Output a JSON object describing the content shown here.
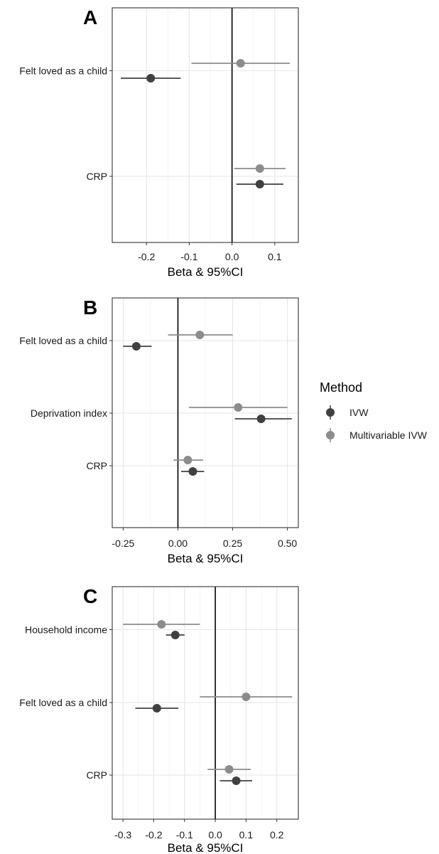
{
  "chart_data": [
    {
      "type": "forest",
      "panel": "A",
      "xlabel": "Beta & 95%CI",
      "xlim": [
        -0.28,
        0.155
      ],
      "xticks": [
        -0.2,
        -0.1,
        0.0,
        0.1
      ],
      "xtick_labels": [
        "-0.2",
        "-0.1",
        "0.0",
        "0.1"
      ],
      "categories": [
        "Felt loved as a child",
        "CRP"
      ],
      "series": [
        {
          "name": "IVW",
          "color": "#404040",
          "points": [
            {
              "category": "Felt loved as a child",
              "beta": -0.19,
              "lo": -0.26,
              "hi": -0.12
            },
            {
              "category": "CRP",
              "beta": 0.065,
              "lo": 0.01,
              "hi": 0.12
            }
          ]
        },
        {
          "name": "Multivariable IVW",
          "color": "#8c8c8c",
          "points": [
            {
              "category": "Felt loved as a child",
              "beta": 0.02,
              "lo": -0.095,
              "hi": 0.135
            },
            {
              "category": "CRP",
              "beta": 0.065,
              "lo": 0.005,
              "hi": 0.125
            }
          ]
        }
      ]
    },
    {
      "type": "forest",
      "panel": "B",
      "xlabel": "Beta & 95%CI",
      "xlim": [
        -0.3,
        0.55
      ],
      "xticks": [
        -0.25,
        0.0,
        0.25,
        0.5
      ],
      "xtick_labels": [
        "-0.25",
        "0.00",
        "0.25",
        "0.50"
      ],
      "categories": [
        "Felt loved as a child",
        "Deprivation index",
        "CRP"
      ],
      "series": [
        {
          "name": "IVW",
          "color": "#404040",
          "points": [
            {
              "category": "Felt loved as a child",
              "beta": -0.19,
              "lo": -0.25,
              "hi": -0.12
            },
            {
              "category": "Deprivation index",
              "beta": 0.38,
              "lo": 0.26,
              "hi": 0.52
            },
            {
              "category": "CRP",
              "beta": 0.068,
              "lo": 0.015,
              "hi": 0.12
            }
          ]
        },
        {
          "name": "Multivariable IVW",
          "color": "#8c8c8c",
          "points": [
            {
              "category": "Felt loved as a child",
              "beta": 0.1,
              "lo": -0.045,
              "hi": 0.25
            },
            {
              "category": "Deprivation index",
              "beta": 0.275,
              "lo": 0.05,
              "hi": 0.5
            },
            {
              "category": "CRP",
              "beta": 0.045,
              "lo": -0.02,
              "hi": 0.115
            }
          ]
        }
      ]
    },
    {
      "type": "forest",
      "panel": "C",
      "xlabel": "Beta & 95%CI",
      "xlim": [
        -0.335,
        0.27
      ],
      "xticks": [
        -0.3,
        -0.2,
        -0.1,
        0.0,
        0.1,
        0.2
      ],
      "xtick_labels": [
        "-0.3",
        "-0.2",
        "-0.1",
        "0.0",
        "0.1",
        "0.2"
      ],
      "categories": [
        "Household income",
        "Felt loved as a child",
        "CRP"
      ],
      "series": [
        {
          "name": "IVW",
          "color": "#404040",
          "points": [
            {
              "category": "Household income",
              "beta": -0.13,
              "lo": -0.16,
              "hi": -0.1
            },
            {
              "category": "Felt loved as a child",
              "beta": -0.19,
              "lo": -0.26,
              "hi": -0.12
            },
            {
              "category": "CRP",
              "beta": 0.068,
              "lo": 0.015,
              "hi": 0.12
            }
          ]
        },
        {
          "name": "Multivariable IVW",
          "color": "#8c8c8c",
          "points": [
            {
              "category": "Household income",
              "beta": -0.175,
              "lo": -0.3,
              "hi": -0.05
            },
            {
              "category": "Felt loved as a child",
              "beta": 0.1,
              "lo": -0.05,
              "hi": 0.25
            },
            {
              "category": "CRP",
              "beta": 0.045,
              "lo": -0.025,
              "hi": 0.115
            }
          ]
        }
      ]
    }
  ],
  "legend": {
    "title": "Method",
    "placement": "right",
    "items": [
      {
        "label": "IVW",
        "color": "#404040"
      },
      {
        "label": "Multivariable IVW",
        "color": "#8c8c8c"
      }
    ]
  }
}
